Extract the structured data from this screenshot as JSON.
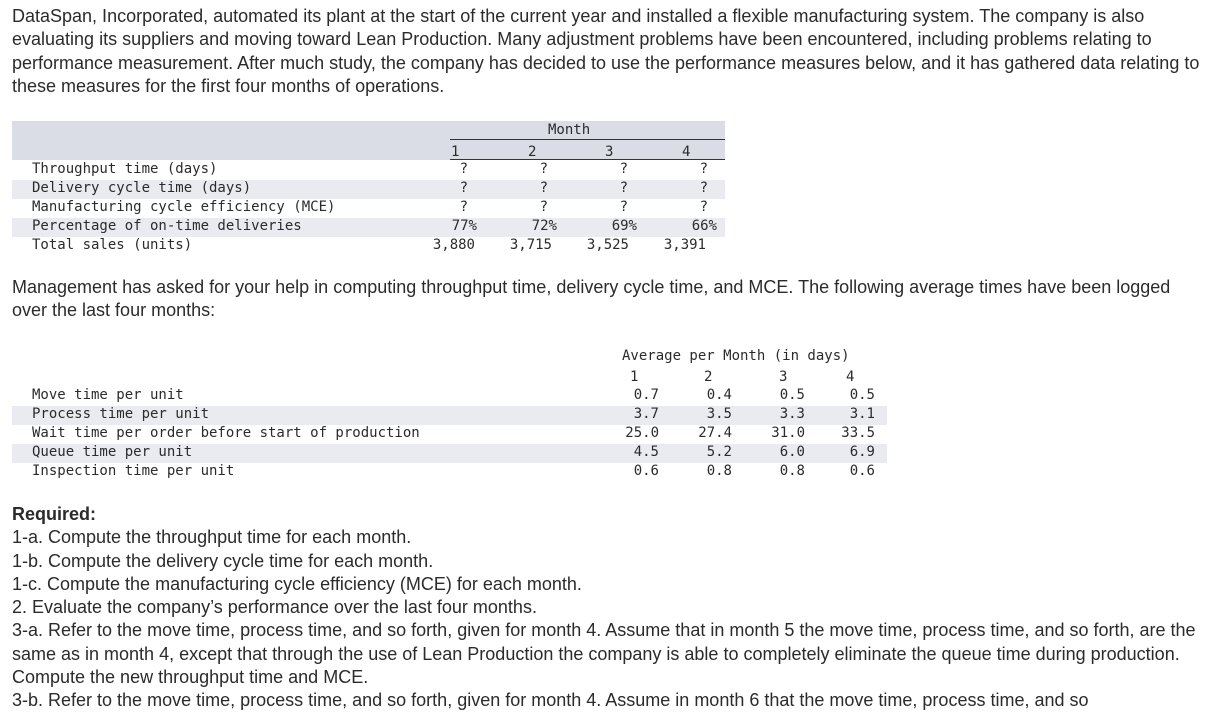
{
  "intro": "DataSpan, Incorporated, automated its plant at the start of the current year and installed a flexible manufacturing system. The company is also evaluating its suppliers and moving toward Lean Production. Many adjustment problems have been encountered, including problems relating to performance measurement. After much study, the company has decided to use the performance measures below, and it has gathered data relating to these measures for the first four months of operations.",
  "table1": {
    "caption": "Month",
    "months": [
      "1",
      "2",
      "3",
      "4"
    ],
    "rows": [
      {
        "label": "Throughput time (days)",
        "values": [
          "?",
          "?",
          "?",
          "?"
        ]
      },
      {
        "label": "Delivery cycle time (days)",
        "values": [
          "?",
          "?",
          "?",
          "?"
        ]
      },
      {
        "label": "Manufacturing cycle efficiency (MCE)",
        "values": [
          "?",
          "?",
          "?",
          "?"
        ]
      },
      {
        "label": "Percentage of on-time deliveries",
        "values": [
          "77%",
          "72%",
          "69%",
          "66%"
        ]
      },
      {
        "label": "Total sales (units)",
        "values": [
          "3,880",
          "3,715",
          "3,525",
          "3,391"
        ]
      }
    ]
  },
  "management": "Management has asked for your help in computing throughput time, delivery cycle time, and MCE. The following average times have been logged over the last four months:",
  "table2": {
    "caption": "Average per Month (in days)",
    "months": [
      "1",
      "2",
      "3",
      "4"
    ],
    "rows": [
      {
        "label": "Move time per unit",
        "values": [
          "0.7",
          "0.4",
          "0.5",
          "0.5"
        ]
      },
      {
        "label": "Process time per unit",
        "values": [
          "3.7",
          "3.5",
          "3.3",
          "3.1"
        ]
      },
      {
        "label": "Wait time per order before start of production",
        "values": [
          "25.0",
          "27.4",
          "31.0",
          "33.5"
        ]
      },
      {
        "label": "Queue time per unit",
        "values": [
          "4.5",
          "5.2",
          "6.0",
          "6.9"
        ]
      },
      {
        "label": "Inspection time per unit",
        "values": [
          "0.6",
          "0.8",
          "0.8",
          "0.6"
        ]
      }
    ]
  },
  "required": {
    "title": "Required:",
    "items": [
      "1-a. Compute the throughput time for each month.",
      "1-b. Compute the delivery cycle time for each month.",
      "1-c. Compute the manufacturing cycle efficiency (MCE) for each month.",
      "2. Evaluate the company’s performance over the last four months.",
      "3-a. Refer to the move time, process time, and so forth, given for month 4. Assume that in month 5 the move time, process time, and so forth, are the same as in month 4, except that through the use of Lean Production the company is able to completely eliminate the queue time during production. Compute the new throughput time and MCE.",
      "3-b. Refer to the move time, process time, and so forth, given for month 4. Assume in month 6 that the move time, process time, and so"
    ]
  }
}
